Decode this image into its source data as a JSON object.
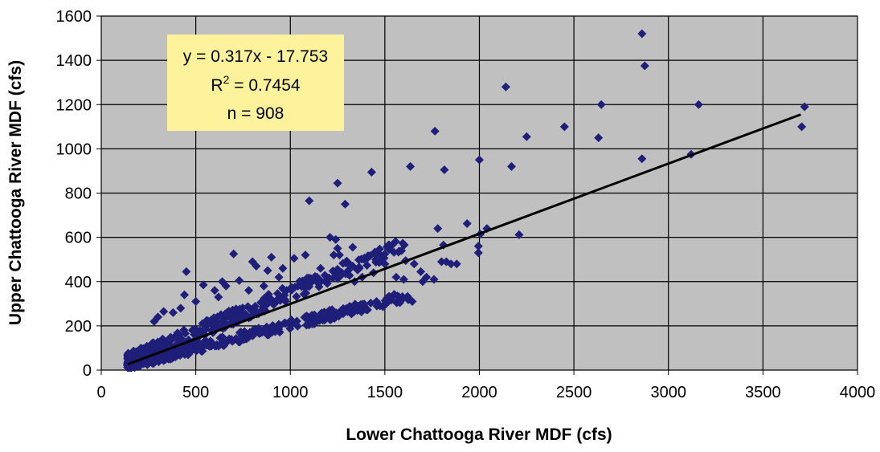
{
  "chart_data": {
    "type": "scatter",
    "title": "",
    "xlabel": "Lower Chattooga River MDF (cfs)",
    "ylabel": "Upper Chattooga River MDF (cfs)",
    "xlim": [
      0,
      4000
    ],
    "ylim": [
      0,
      1600
    ],
    "x_ticks": [
      "0",
      "500",
      "1000",
      "1500",
      "2000",
      "2500",
      "3000",
      "3500",
      "4000"
    ],
    "y_ticks": [
      "0",
      "200",
      "400",
      "600",
      "800",
      "1000",
      "1200",
      "1400",
      "1600"
    ],
    "grid": true,
    "legend": "none",
    "colors": {
      "plot_background": "#c0c0c0",
      "point": "#1f1f7a",
      "trendline": "#000000",
      "annotation_background": "#fbf29b"
    },
    "marker": "diamond",
    "annotation": {
      "equation": "y = 0.317x - 17.753",
      "r2_prefix": "R",
      "r2_superscript": "2",
      "r2_suffix": " = 0.7454",
      "n_label": "n = 908"
    },
    "trendline": {
      "slope": 0.317,
      "intercept": -17.753,
      "x_range": [
        140,
        3700
      ]
    },
    "series": [
      {
        "points": [
          [
            2860,
            1520
          ],
          [
            2875,
            1375
          ],
          [
            3160,
            1200
          ],
          [
            3720,
            1190
          ],
          [
            3705,
            1100
          ],
          [
            2645,
            1200
          ],
          [
            2630,
            1050
          ],
          [
            2860,
            955
          ],
          [
            3120,
            975
          ],
          [
            2450,
            1100
          ],
          [
            2250,
            1055
          ],
          [
            2140,
            1280
          ],
          [
            2170,
            920
          ],
          [
            2000,
            950
          ],
          [
            2210,
            612
          ],
          [
            2040,
            640
          ],
          [
            2005,
            615
          ],
          [
            1995,
            560
          ],
          [
            1995,
            530
          ],
          [
            1935,
            662
          ],
          [
            1880,
            480
          ],
          [
            1850,
            480
          ],
          [
            1825,
            490
          ],
          [
            1800,
            490
          ],
          [
            1810,
            565
          ],
          [
            1780,
            640
          ],
          [
            1765,
            1080
          ],
          [
            1760,
            410
          ],
          [
            1720,
            420
          ],
          [
            1690,
            445
          ],
          [
            1655,
            480
          ],
          [
            1645,
            310
          ],
          [
            1635,
            920
          ],
          [
            1610,
            495
          ],
          [
            1560,
            420
          ],
          [
            1815,
            905
          ],
          [
            1430,
            895
          ],
          [
            1330,
            470
          ],
          [
            1300,
            490
          ],
          [
            1290,
            750
          ],
          [
            1250,
            845
          ],
          [
            1260,
            520
          ],
          [
            1250,
            550
          ],
          [
            1240,
            590
          ],
          [
            1230,
            520
          ],
          [
            1210,
            600
          ],
          [
            1185,
            400
          ],
          [
            1100,
            765
          ],
          [
            1080,
            520
          ],
          [
            1020,
            505
          ],
          [
            960,
            460
          ],
          [
            900,
            510
          ],
          [
            880,
            450
          ],
          [
            820,
            470
          ],
          [
            800,
            490
          ],
          [
            730,
            405
          ],
          [
            700,
            525
          ],
          [
            640,
            400
          ],
          [
            600,
            360
          ],
          [
            540,
            385
          ],
          [
            450,
            445
          ],
          [
            440,
            340
          ],
          [
            1700,
            400
          ],
          [
            1600,
            410
          ],
          [
            1500,
            480
          ],
          [
            1440,
            440
          ],
          [
            1380,
            420
          ],
          [
            1340,
            400
          ],
          [
            1330,
            555
          ],
          [
            1270,
            430
          ],
          [
            1160,
            460
          ],
          [
            1150,
            390
          ],
          [
            1040,
            380
          ],
          [
            980,
            360
          ],
          [
            940,
            420
          ],
          [
            860,
            380
          ],
          [
            780,
            360
          ],
          [
            660,
            380
          ],
          [
            620,
            330
          ],
          [
            500,
            310
          ],
          [
            420,
            280
          ],
          [
            380,
            260
          ],
          [
            330,
            265
          ],
          [
            300,
            240
          ],
          [
            280,
            220
          ]
        ]
      }
    ]
  }
}
